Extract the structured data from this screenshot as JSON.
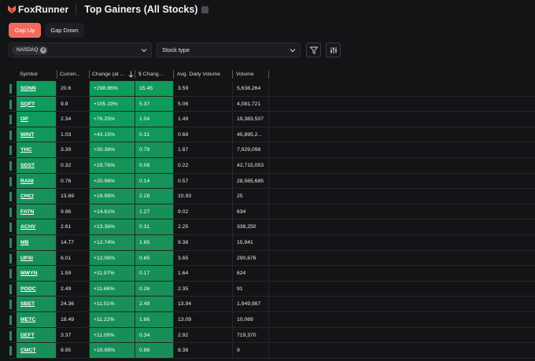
{
  "app": {
    "name": "FoxRunner",
    "page_title": "Top Gainers (All Stocks)"
  },
  "tabs": [
    {
      "label": "Gap Up",
      "active": true
    },
    {
      "label": "Gap Down",
      "active": false
    }
  ],
  "filters": {
    "exchange_chip": "NASDAQ",
    "stock_type_placeholder": "Stock type"
  },
  "colors": {
    "accent": "#f26b5c",
    "gain_strong": "#0f9a5c",
    "gain_light": "#2a8f58",
    "background": "#131416"
  },
  "table": {
    "columns": [
      "Symbol",
      "Curren...",
      "Change (at ...",
      "$ Chang...",
      "Avg. Daily Volume",
      "Volume"
    ],
    "rows": [
      {
        "symbol": "SONN",
        "price": "20.6",
        "change": "+298.86%",
        "dchange": "15.45",
        "avg": "3.59",
        "volume": "5,638,264"
      },
      {
        "symbol": "SQFT",
        "price": "9.9",
        "change": "+105.19%",
        "dchange": "5.37",
        "avg": "5.06",
        "volume": "4,081,721"
      },
      {
        "symbol": "OP",
        "price": "2.34",
        "change": "+76.25%",
        "dchange": "1.04",
        "avg": "1.49",
        "volume": "19,383,507"
      },
      {
        "symbol": "WINT",
        "price": "1.03",
        "change": "+43.15%",
        "dchange": "0.31",
        "avg": "0.69",
        "volume": "45,895,2..."
      },
      {
        "symbol": "YHC",
        "price": "3.39",
        "change": "+30.38%",
        "dchange": "0.79",
        "avg": "1.87",
        "volume": "7,929,098"
      },
      {
        "symbol": "SDST",
        "price": "0.32",
        "change": "+29.76%",
        "dchange": "0.08",
        "avg": "0.22",
        "volume": "42,715,053"
      },
      {
        "symbol": "RANI",
        "price": "0.76",
        "change": "+20.96%",
        "dchange": "0.14",
        "avg": "0.57",
        "volume": "28,565,685"
      },
      {
        "symbol": "CHCI",
        "price": "13.69",
        "change": "+19.98%",
        "dchange": "2.28",
        "avg": "10.93",
        "volume": "25"
      },
      {
        "symbol": "FATN",
        "price": "9.96",
        "change": "+14.61%",
        "dchange": "1.27",
        "avg": "9.02",
        "volume": "634"
      },
      {
        "symbol": "ACHV",
        "price": "2.61",
        "change": "+13.36%",
        "dchange": "0.31",
        "avg": "2.25",
        "volume": "338,250"
      },
      {
        "symbol": "MB",
        "price": "14.77",
        "change": "+12.74%",
        "dchange": "1.65",
        "avg": "9.38",
        "volume": "15,941"
      },
      {
        "symbol": "UPXI",
        "price": "6.01",
        "change": "+12.06%",
        "dchange": "0.65",
        "avg": "3.65",
        "volume": "290,676"
      },
      {
        "symbol": "MWYN",
        "price": "1.59",
        "change": "+11.97%",
        "dchange": "0.17",
        "avg": "1.64",
        "volume": "624"
      },
      {
        "symbol": "PODC",
        "price": "2.49",
        "change": "+11.66%",
        "dchange": "0.26",
        "avg": "2.35",
        "volume": "91"
      },
      {
        "symbol": "SBET",
        "price": "24.36",
        "change": "+11.51%",
        "dchange": "2.49",
        "avg": "13.94",
        "volume": "1,949,987"
      },
      {
        "symbol": "METC",
        "price": "18.49",
        "change": "+11.22%",
        "dchange": "1.86",
        "avg": "13.09",
        "volume": "10,069"
      },
      {
        "symbol": "DEFT",
        "price": "3.37",
        "change": "+11.09%",
        "dchange": "0.34",
        "avg": "2.92",
        "volume": "719,370"
      },
      {
        "symbol": "CMCT",
        "price": "8.95",
        "change": "+10.98%",
        "dchange": "0.88",
        "avg": "8.38",
        "volume": "9"
      }
    ]
  }
}
